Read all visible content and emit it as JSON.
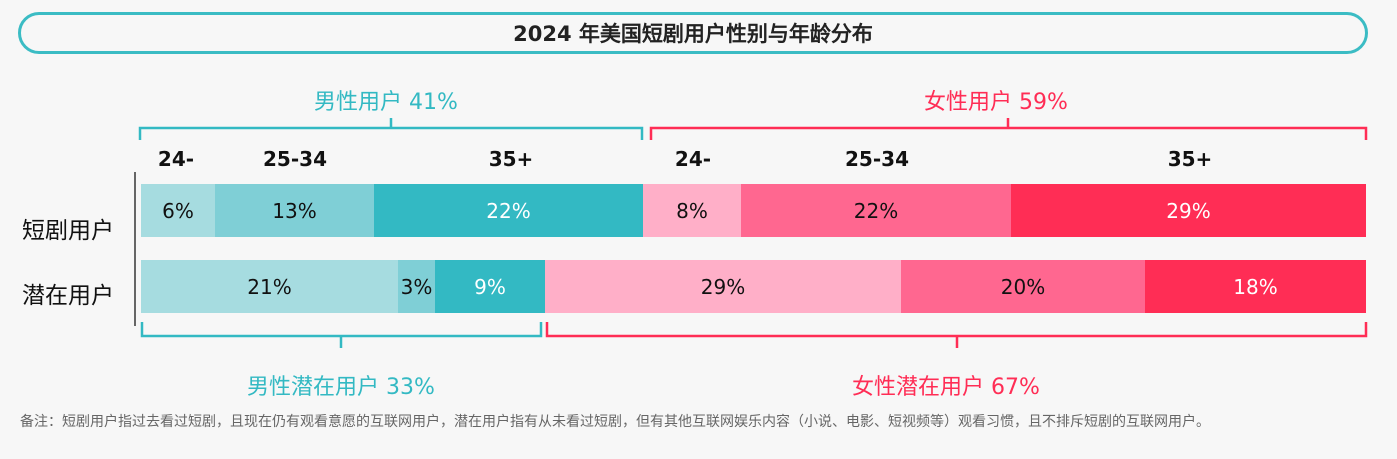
{
  "chart_data": {
    "type": "bar",
    "orientation": "horizontal-stacked",
    "title": "2024 年美国短剧用户性别与年龄分布",
    "age_labels": [
      "24-",
      "25-34",
      "35+",
      "24-",
      "25-34",
      "35+"
    ],
    "groups": {
      "male_users": "男性用户 41%",
      "female_users": "女性用户 59%",
      "male_potential": "男性潜在用户 33%",
      "female_potential": "女性潜在用户 67%"
    },
    "rows": [
      {
        "label": "短剧用户",
        "segments": [
          {
            "gender": "male",
            "age": "24-",
            "value": 6,
            "label": "6%",
            "color": "#a6dce0"
          },
          {
            "gender": "male",
            "age": "25-34",
            "value": 13,
            "label": "13%",
            "color": "#7fcfd6"
          },
          {
            "gender": "male",
            "age": "35+",
            "value": 22,
            "label": "22%",
            "color": "#33b9c3"
          },
          {
            "gender": "female",
            "age": "24-",
            "value": 8,
            "label": "8%",
            "color": "#ffafc8"
          },
          {
            "gender": "female",
            "age": "25-34",
            "value": 22,
            "label": "22%",
            "color": "#ff6790"
          },
          {
            "gender": "female",
            "age": "35+",
            "value": 29,
            "label": "29%",
            "color": "#ff2d55"
          }
        ]
      },
      {
        "label": "潜在用户",
        "segments": [
          {
            "gender": "male",
            "age": "24-",
            "value": 21,
            "label": "21%",
            "color": "#a6dce0"
          },
          {
            "gender": "male",
            "age": "25-34",
            "value": 3,
            "label": "3%",
            "color": "#7fcfd6"
          },
          {
            "gender": "male",
            "age": "35+",
            "value": 9,
            "label": "9%",
            "color": "#33b9c3"
          },
          {
            "gender": "female",
            "age": "24-",
            "value": 29,
            "label": "29%",
            "color": "#ffafc8"
          },
          {
            "gender": "female",
            "age": "25-34",
            "value": 20,
            "label": "20%",
            "color": "#ff6790"
          },
          {
            "gender": "female",
            "age": "35+",
            "value": 18,
            "label": "18%",
            "color": "#ff2d55"
          }
        ]
      }
    ],
    "xlim": [
      0,
      100
    ],
    "legend": "none",
    "grid": false
  },
  "footnote": "备注：短剧用户指过去看过短剧，且现在仍有观看意愿的互联网用户，潜在用户指有从未看过短剧，但有其他互联网娱乐内容（小说、电影、短视频等）观看习惯，且不排斥短剧的互联网用户。",
  "colors": {
    "teal": "#33b9c3",
    "pink": "#ff2d55",
    "light_text": "#ffffff",
    "dark_text": "#111111"
  }
}
